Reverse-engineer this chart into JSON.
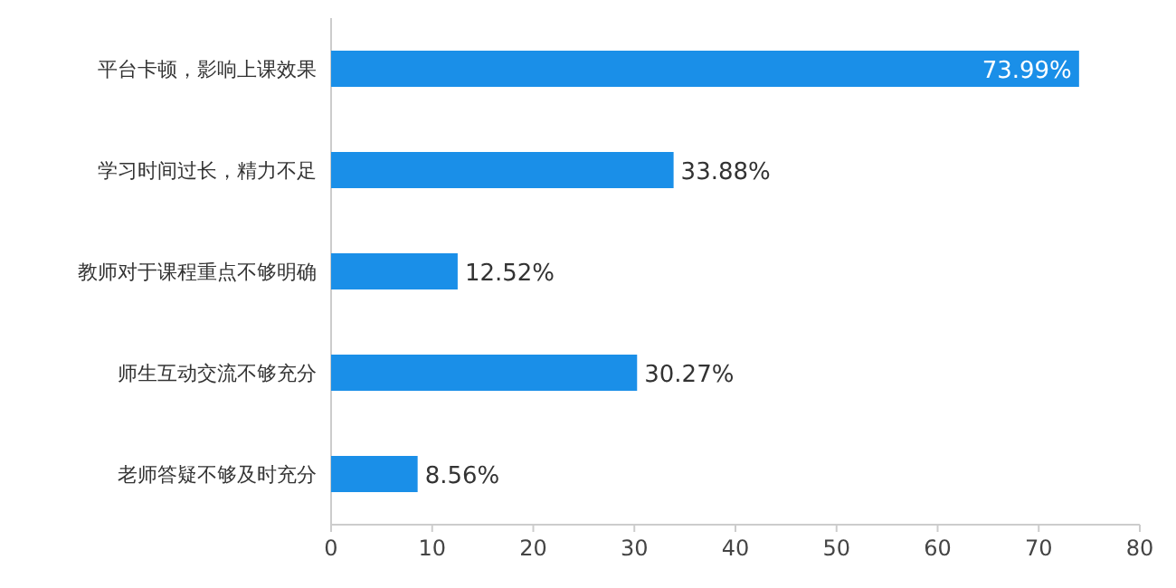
{
  "chart_data": {
    "type": "bar",
    "orientation": "horizontal",
    "categories": [
      "平台卡顿，影响上课效果",
      "学习时间过长，精力不足",
      "教师对于课程重点不够明确",
      "师生互动交流不够充分",
      "老师答疑不够及时充分"
    ],
    "values": [
      73.99,
      33.88,
      12.52,
      30.27,
      8.56
    ],
    "value_labels": [
      "73.99%",
      "33.88%",
      "12.52%",
      "30.27%",
      "8.56%"
    ],
    "color": "#1a8fe8",
    "xlim": [
      0,
      80
    ],
    "xticks": [
      0,
      10,
      20,
      30,
      40,
      50,
      60,
      70,
      80
    ],
    "grid": false
  }
}
